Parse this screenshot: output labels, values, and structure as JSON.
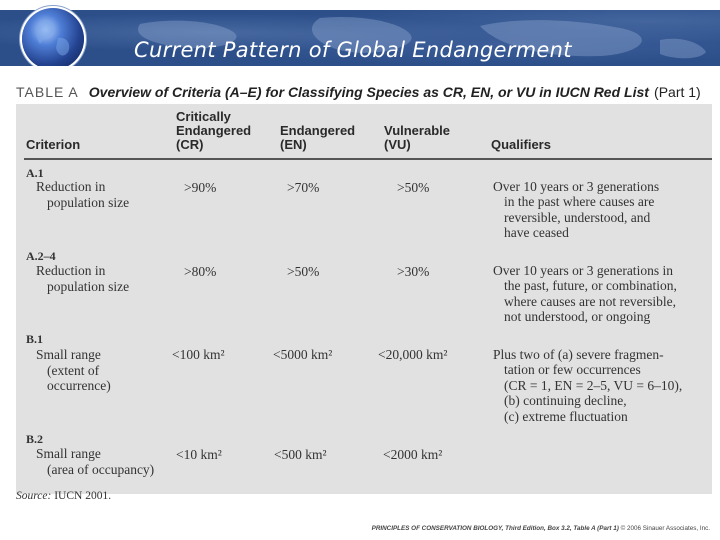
{
  "slide": {
    "title": "Current Pattern of Global Endangerment"
  },
  "table": {
    "label": "TABLE A",
    "caption": "Overview of Criteria (A–E) for Classifying Species as CR, EN, or VU in IUCN Red List",
    "part": "(Part 1)",
    "headers": {
      "criterion": "Criterion",
      "cr": [
        "Critically",
        "Endangered",
        "(CR)"
      ],
      "en": [
        "Endangered",
        "(EN)"
      ],
      "vu": [
        "Vulnerable",
        "(VU)"
      ],
      "qualifiers": "Qualifiers"
    },
    "rows": [
      {
        "id": "A.1",
        "desc": [
          "Reduction in",
          "population size"
        ],
        "cr": ">90%",
        "en": ">70%",
        "vu": ">50%",
        "qual": [
          "Over 10 years or 3 generations",
          "in the past where causes are",
          "reversible, understood, and",
          "have ceased"
        ]
      },
      {
        "id": "A.2–4",
        "desc": [
          "Reduction in",
          "population size"
        ],
        "cr": ">80%",
        "en": ">50%",
        "vu": ">30%",
        "qual": [
          "Over 10 years or 3 generations in",
          "the past, future, or combination,",
          "where causes are not reversible,",
          "not understood, or ongoing"
        ]
      },
      {
        "id": "B.1",
        "desc": [
          "Small range",
          "(extent of",
          "occurrence)"
        ],
        "cr": "<100 km²",
        "en": "<5000 km²",
        "vu": "<20,000 km²",
        "qual": [
          "Plus two of (a) severe fragmen-",
          "tation or few occurrences",
          "(CR = 1, EN = 2–5, VU = 6–10),",
          "(b) continuing decline,",
          "(c) extreme fluctuation"
        ]
      },
      {
        "id": "B.2",
        "desc": [
          "Small range",
          "(area of occupancy)"
        ],
        "cr": "<10 km²",
        "en": "<500 km²",
        "vu": "<2000 km²",
        "qual": []
      }
    ],
    "source_label": "Source:",
    "source_text": "IUCN 2001.",
    "credit_title": "PRINCIPLES OF CONSERVATION BIOLOGY, Third Edition, Box 3.2, Table A (Part 1)",
    "credit_rest": "© 2006 Sinauer Associates, Inc."
  }
}
